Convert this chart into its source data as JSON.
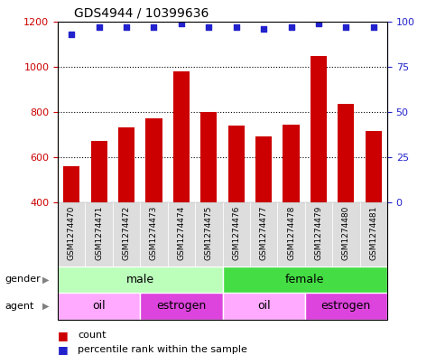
{
  "title": "GDS4944 / 10399636",
  "samples": [
    "GSM1274470",
    "GSM1274471",
    "GSM1274472",
    "GSM1274473",
    "GSM1274474",
    "GSM1274475",
    "GSM1274476",
    "GSM1274477",
    "GSM1274478",
    "GSM1274479",
    "GSM1274480",
    "GSM1274481"
  ],
  "counts": [
    560,
    670,
    730,
    770,
    980,
    800,
    740,
    690,
    745,
    1045,
    835,
    715
  ],
  "percentiles": [
    93,
    97,
    97,
    97,
    99,
    97,
    97,
    96,
    97,
    99,
    97,
    97
  ],
  "ylim_left": [
    400,
    1200
  ],
  "ylim_right": [
    0,
    100
  ],
  "yticks_left": [
    400,
    600,
    800,
    1000,
    1200
  ],
  "yticks_right": [
    0,
    25,
    50,
    75,
    100
  ],
  "bar_color": "#cc0000",
  "dot_color": "#2222cc",
  "bar_width": 0.6,
  "gender_labels": [
    {
      "label": "male",
      "start": 0,
      "end": 6,
      "color": "#bbffbb"
    },
    {
      "label": "female",
      "start": 6,
      "end": 12,
      "color": "#44dd44"
    }
  ],
  "agent_labels": [
    {
      "label": "oil",
      "start": 0,
      "end": 3,
      "color": "#ffaaff"
    },
    {
      "label": "estrogen",
      "start": 3,
      "end": 6,
      "color": "#dd44dd"
    },
    {
      "label": "oil",
      "start": 6,
      "end": 9,
      "color": "#ffaaff"
    },
    {
      "label": "estrogen",
      "start": 9,
      "end": 12,
      "color": "#dd44dd"
    }
  ],
  "legend_count_color": "#cc0000",
  "legend_dot_color": "#2222cc",
  "bg_label_color": "#dddddd"
}
